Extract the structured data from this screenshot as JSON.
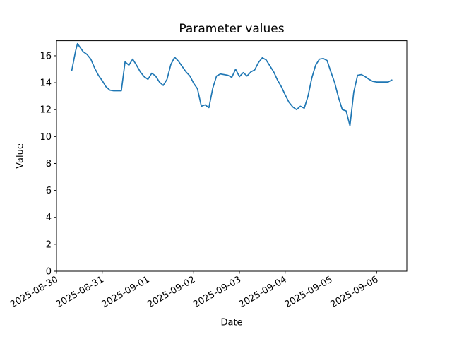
{
  "chart_data": {
    "type": "line",
    "title": "Parameter values",
    "xlabel": "Date",
    "ylabel": "Value",
    "grid": false,
    "legend": false,
    "line_color": "#1f77b4",
    "axis_color": "#000000",
    "x_tick_labels": [
      "2025-08-30",
      "2025-08-31",
      "2025-09-01",
      "2025-09-02",
      "2025-09-03",
      "2025-09-04",
      "2025-09-05",
      "2025-09-06"
    ],
    "x_tick_positions_days": [
      0,
      1,
      2,
      3,
      4,
      5,
      6,
      7
    ],
    "x_tick_rotation_deg": 30,
    "y_ticks": [
      0,
      2,
      4,
      6,
      8,
      10,
      12,
      14,
      16
    ],
    "xlim_days": [
      0,
      7.66
    ],
    "ylim": [
      0,
      17.12
    ],
    "x_unit": "days since 2025-08-30",
    "x_days": [
      0.333,
      0.417,
      0.458,
      0.5,
      0.583,
      0.667,
      0.75,
      0.833,
      0.917,
      1.0,
      1.083,
      1.167,
      1.25,
      1.333,
      1.417,
      1.5,
      1.583,
      1.667,
      1.75,
      1.833,
      1.917,
      2.0,
      2.083,
      2.167,
      2.25,
      2.333,
      2.417,
      2.5,
      2.583,
      2.667,
      2.75,
      2.833,
      2.917,
      3.0,
      3.083,
      3.167,
      3.25,
      3.333,
      3.417,
      3.5,
      3.583,
      3.667,
      3.75,
      3.833,
      3.917,
      4.0,
      4.083,
      4.167,
      4.25,
      4.333,
      4.417,
      4.5,
      4.583,
      4.667,
      4.75,
      4.833,
      4.917,
      5.0,
      5.083,
      5.167,
      5.25,
      5.333,
      5.417,
      5.5,
      5.583,
      5.667,
      5.75,
      5.833,
      5.917,
      6.0,
      6.083,
      6.167,
      6.25,
      6.333,
      6.417,
      6.5,
      6.583,
      6.667,
      6.75,
      6.833,
      6.917,
      7.0,
      7.083,
      7.167,
      7.25,
      7.333
    ],
    "values": [
      14.9,
      16.35,
      16.9,
      16.7,
      16.3,
      16.1,
      15.75,
      15.1,
      14.55,
      14.15,
      13.7,
      13.45,
      13.4,
      13.4,
      13.4,
      15.55,
      15.3,
      15.75,
      15.3,
      14.8,
      14.45,
      14.25,
      14.7,
      14.5,
      14.05,
      13.8,
      14.25,
      15.35,
      15.9,
      15.6,
      15.2,
      14.8,
      14.5,
      13.95,
      13.55,
      12.25,
      12.35,
      12.15,
      13.6,
      14.5,
      14.65,
      14.6,
      14.55,
      14.4,
      15.0,
      14.45,
      14.75,
      14.5,
      14.8,
      14.95,
      15.5,
      15.85,
      15.7,
      15.25,
      14.8,
      14.2,
      13.7,
      13.1,
      12.55,
      12.2,
      12.0,
      12.25,
      12.1,
      13.0,
      14.35,
      15.3,
      15.75,
      15.8,
      15.65,
      14.8,
      14.0,
      12.9,
      12.0,
      11.9,
      10.8,
      13.3,
      14.55,
      14.6,
      14.45,
      14.25,
      14.1,
      14.05,
      14.05,
      14.05,
      14.05,
      14.2
    ]
  }
}
